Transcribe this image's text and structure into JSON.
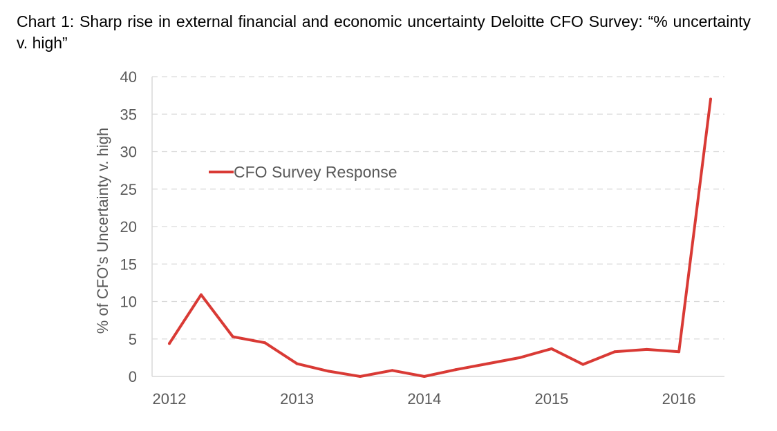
{
  "chart_data": {
    "type": "line",
    "title": "Chart 1: Sharp rise in external financial and economic uncertainty Deloitte CFO Survey: “% uncertainty v. high”",
    "xlabel": "",
    "ylabel": "% of CFO's Uncertainty v. high",
    "ylim": [
      0,
      40
    ],
    "yticks": [
      0,
      5,
      10,
      15,
      20,
      25,
      30,
      35,
      40
    ],
    "xlim": [
      "2012-01-01",
      "2016-07-01"
    ],
    "xticks": [
      {
        "label": "2012",
        "x": "2012-01-01"
      },
      {
        "label": "2013",
        "x": "2013-01-01"
      },
      {
        "label": "2014",
        "x": "2014-01-01"
      },
      {
        "label": "2015",
        "x": "2015-01-01"
      },
      {
        "label": "2016",
        "x": "2016-01-01"
      }
    ],
    "grid": true,
    "legend": "upper-left",
    "color": "#d93a35",
    "series": [
      {
        "name": "CFO Survey Response",
        "x": [
          "2012-01-01",
          "2012-04-01",
          "2012-07-01",
          "2012-10-01",
          "2013-01-01",
          "2013-04-01",
          "2013-07-01",
          "2013-10-01",
          "2014-01-01",
          "2014-04-01",
          "2014-07-01",
          "2014-10-01",
          "2015-01-01",
          "2015-04-01",
          "2015-07-01",
          "2015-10-01",
          "2016-01-01",
          "2016-04-01"
        ],
        "values": [
          4.4,
          10.9,
          5.3,
          4.5,
          1.7,
          0.7,
          0.0,
          0.8,
          0.0,
          0.9,
          1.7,
          2.5,
          3.7,
          1.6,
          3.3,
          3.6,
          3.3,
          37.0
        ]
      }
    ]
  }
}
